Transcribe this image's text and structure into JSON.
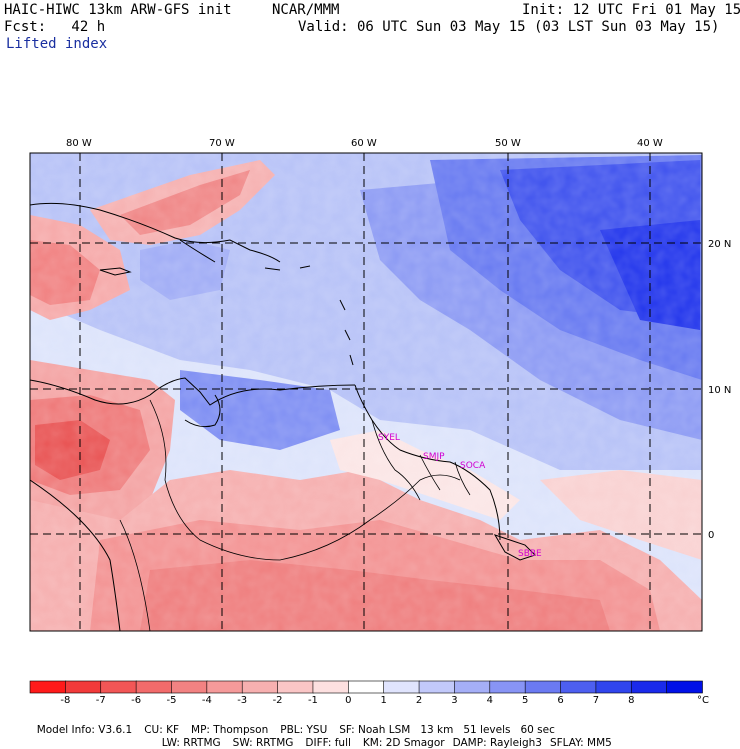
{
  "header": {
    "model": "HAIC-HIWC 13km ARW-GFS init",
    "org": "NCAR/MMM",
    "init": "Init: 12 UTC Fri 01 May 15",
    "fcst": "Fcst:   42 h",
    "valid": "Valid: 06 UTC Sun 03 May 15 (03 LST Sun 03 May 15)",
    "field": "Lifted index"
  },
  "map": {
    "lon_labels": [
      "80 W",
      "70 W",
      "60 W",
      "50 W",
      "40 W"
    ],
    "lat_labels": [
      "20 N",
      "10 N",
      "0"
    ],
    "stations": [
      "SYEL",
      "SMJP",
      "SOCA",
      "SBBE"
    ]
  },
  "colorbar": {
    "ticks": [
      "-8",
      "-7",
      "-6",
      "-5",
      "-4",
      "-3",
      "-2",
      "-1",
      "0",
      "1",
      "2",
      "3",
      "4",
      "5",
      "6",
      "7",
      "8"
    ],
    "unit": "°C",
    "colors": [
      "#ff1a1a",
      "#f23a3a",
      "#f25656",
      "#f26b6b",
      "#f28282",
      "#f59a9a",
      "#f7b0b0",
      "#fac6c6",
      "#fde0e0",
      "#ffffff",
      "#e0e4fd",
      "#c2c9fa",
      "#a5aff7",
      "#8894f5",
      "#6b7af2",
      "#4d5ff0",
      "#3045ed",
      "#1a2aeb",
      "#0010e8"
    ]
  },
  "footer": {
    "line1": [
      "Model Info: V3.6.1",
      "CU: KF",
      "MP: Thompson",
      "PBL: YSU",
      "SF: Noah LSM",
      "13 km",
      "51 levels",
      "60 sec"
    ],
    "line2": [
      "LW: RRTMG",
      "SW: RRTMG",
      "DIFF: full",
      "KM: 2D Smagor",
      "DAMP: Rayleigh3",
      "SFLAY: MM5"
    ]
  }
}
